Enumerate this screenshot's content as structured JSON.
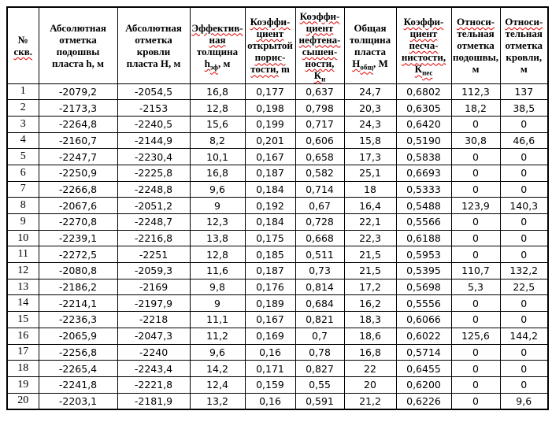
{
  "page": {
    "background": "#ffffff",
    "grid_color": "#000000",
    "spellcheck_underline_color": "#e00000"
  },
  "table": {
    "columns": [
      {
        "name": "well-number",
        "width": 40,
        "header": [
          [
            {
              "t": "№"
            }
          ],
          [
            {
              "t": "скв.",
              "w": 1
            }
          ]
        ]
      },
      {
        "name": "abs-mark-bottom",
        "width": 100,
        "header": [
          [
            {
              "t": "Абсолютная"
            }
          ],
          [
            {
              "t": "отметка"
            }
          ],
          [
            {
              "t": "подошвы"
            }
          ],
          [
            {
              "t": "пласта h, м"
            }
          ]
        ]
      },
      {
        "name": "abs-mark-top",
        "width": 92,
        "header": [
          [
            {
              "t": "Абсолютная"
            }
          ],
          [
            {
              "t": "отметка"
            }
          ],
          [
            {
              "t": "кровли"
            }
          ],
          [
            {
              "t": "пласта H, м"
            }
          ]
        ]
      },
      {
        "name": "eff-thickness",
        "width": 70,
        "header": [
          [
            {
              "t": "Эффектив-",
              "w": 1
            }
          ],
          [
            {
              "t": "ная",
              "w": 1
            }
          ],
          [
            {
              "t": "толщина"
            }
          ],
          [
            {
              "t": "h",
              "w": 1
            },
            {
              "t": "эф",
              "w": 1,
              "s": 1
            },
            {
              "t": ", м"
            }
          ]
        ]
      },
      {
        "name": "open-porosity",
        "width": 64,
        "header": [
          [
            {
              "t": "Коэффи-",
              "w": 1
            }
          ],
          [
            {
              "t": "циент",
              "w": 1
            }
          ],
          [
            {
              "t": "открытой"
            }
          ],
          [
            {
              "t": "порис-",
              "w": 1
            }
          ],
          [
            {
              "t": "тости,",
              "w": 1
            },
            {
              "t": " m"
            }
          ]
        ]
      },
      {
        "name": "oil-saturation",
        "width": 62,
        "header": [
          [
            {
              "t": "Коэффи-",
              "w": 1
            }
          ],
          [
            {
              "t": "циент",
              "w": 1
            }
          ],
          [
            {
              "t": "нефтена-",
              "w": 1
            }
          ],
          [
            {
              "t": "сышен-",
              "w": 1
            }
          ],
          [
            {
              "t": "ности,",
              "w": 1
            }
          ],
          [
            {
              "t": "К",
              "w": 1
            },
            {
              "t": "н",
              "w": 1,
              "s": 1
            }
          ]
        ]
      },
      {
        "name": "total-thickness",
        "width": 66,
        "header": [
          [
            {
              "t": "Общая"
            }
          ],
          [
            {
              "t": "толщина"
            }
          ],
          [
            {
              "t": "пласта"
            }
          ],
          [
            {
              "t": "Н",
              "w": 1
            },
            {
              "t": "общ",
              "w": 1,
              "s": 1
            },
            {
              "t": ", М"
            }
          ]
        ]
      },
      {
        "name": "sandiness",
        "width": 70,
        "header": [
          [
            {
              "t": "Коэффи-",
              "w": 1
            }
          ],
          [
            {
              "t": "циент",
              "w": 1
            }
          ],
          [
            {
              "t": "песча-",
              "w": 1
            }
          ],
          [
            {
              "t": "нистости,",
              "w": 1
            }
          ],
          [
            {
              "t": "К",
              "w": 1
            },
            {
              "t": "пес",
              "w": 1,
              "s": 1
            }
          ]
        ]
      },
      {
        "name": "rel-mark-bottom",
        "width": 62,
        "header": [
          [
            {
              "t": "Относи-",
              "w": 1
            }
          ],
          [
            {
              "t": "тельная"
            }
          ],
          [
            {
              "t": "отметка"
            }
          ],
          [
            {
              "t": "подошвы,"
            }
          ],
          [
            {
              "t": "м"
            }
          ]
        ]
      },
      {
        "name": "rel-mark-top",
        "width": 61,
        "header": [
          [
            {
              "t": "Относи-",
              "w": 1
            }
          ],
          [
            {
              "t": "тельная"
            }
          ],
          [
            {
              "t": "отметка"
            }
          ],
          [
            {
              "t": "кровли,"
            }
          ],
          [
            {
              "t": "м"
            }
          ]
        ]
      }
    ],
    "rows": [
      [
        "1",
        "-2079,2",
        "-2054,5",
        "16,8",
        "0,177",
        "0,637",
        "24,7",
        "0,6802",
        "112,3",
        "137"
      ],
      [
        "2",
        "-2173,3",
        "-2153",
        "12,8",
        "0,198",
        "0,798",
        "20,3",
        "0,6305",
        "18,2",
        "38,5"
      ],
      [
        "3",
        "-2264,8",
        "-2240,5",
        "15,6",
        "0,199",
        "0,717",
        "24,3",
        "0,6420",
        "0",
        "0"
      ],
      [
        "4",
        "-2160,7",
        "-2144,9",
        "8,2",
        "0,201",
        "0,606",
        "15,8",
        "0,5190",
        "30,8",
        "46,6"
      ],
      [
        "5",
        "-2247,7",
        "-2230,4",
        "10,1",
        "0,167",
        "0,658",
        "17,3",
        "0,5838",
        "0",
        "0"
      ],
      [
        "6",
        "-2250,9",
        "-2225,8",
        "16,8",
        "0,187",
        "0,582",
        "25,1",
        "0,6693",
        "0",
        "0"
      ],
      [
        "7",
        "-2266,8",
        "-2248,8",
        "9,6",
        "0,184",
        "0,714",
        "18",
        "0,5333",
        "0",
        "0"
      ],
      [
        "8",
        "-2067,6",
        "-2051,2",
        "9",
        "0,192",
        "0,67",
        "16,4",
        "0,5488",
        "123,9",
        "140,3"
      ],
      [
        "9",
        "-2270,8",
        "-2248,7",
        "12,3",
        "0,184",
        "0,728",
        "22,1",
        "0,5566",
        "0",
        "0"
      ],
      [
        "10",
        "-2239,1",
        "-2216,8",
        "13,8",
        "0,175",
        "0,668",
        "22,3",
        "0,6188",
        "0",
        "0"
      ],
      [
        "11",
        "-2272,5",
        "-2251",
        "12,8",
        "0,185",
        "0,511",
        "21,5",
        "0,5953",
        "0",
        "0"
      ],
      [
        "12",
        "-2080,8",
        "-2059,3",
        "11,6",
        "0,187",
        "0,73",
        "21,5",
        "0,5395",
        "110,7",
        "132,2"
      ],
      [
        "13",
        "-2186,2",
        "-2169",
        "9,8",
        "0,176",
        "0,814",
        "17,2",
        "0,5698",
        "5,3",
        "22,5"
      ],
      [
        "14",
        "-2214,1",
        "-2197,9",
        "9",
        "0,189",
        "0,684",
        "16,2",
        "0,5556",
        "0",
        "0"
      ],
      [
        "15",
        "-2236,3",
        "-2218",
        "11,1",
        "0,167",
        "0,821",
        "18,3",
        "0,6066",
        "0",
        "0"
      ],
      [
        "16",
        "-2065,9",
        "-2047,3",
        "11,2",
        "0,169",
        "0,7",
        "18,6",
        "0,6022",
        "125,6",
        "144,2"
      ],
      [
        "17",
        "-2256,8",
        "-2240",
        "9,6",
        "0,16",
        "0,78",
        "16,8",
        "0,5714",
        "0",
        "0"
      ],
      [
        "18",
        "-2265,4",
        "-2243,4",
        "14,2",
        "0,171",
        "0,827",
        "22",
        "0,6455",
        "0",
        "0"
      ],
      [
        "19",
        "-2241,8",
        "-2221,8",
        "12,4",
        "0,159",
        "0,55",
        "20",
        "0,6200",
        "0",
        "0"
      ],
      [
        "20",
        "-2203,1",
        "-2181,9",
        "13,2",
        "0,16",
        "0,591",
        "21,2",
        "0,6226",
        "0",
        "9,6"
      ]
    ]
  }
}
